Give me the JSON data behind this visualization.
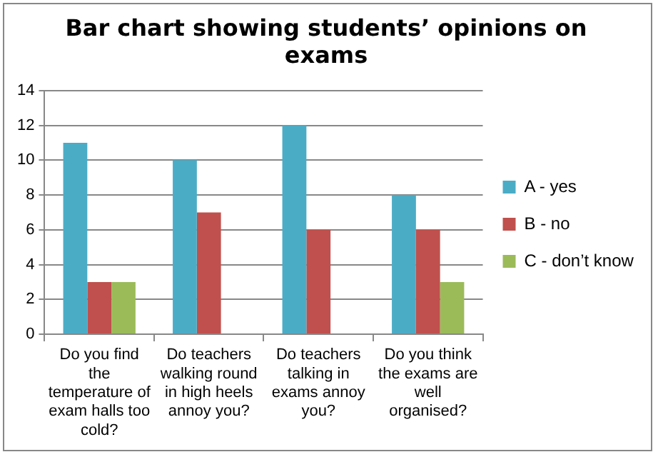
{
  "chart_data": {
    "type": "bar",
    "title": "Bar chart showing students’ opinions on exams",
    "categories": [
      "Do you find the temperature of exam halls too cold?",
      "Do teachers walking round in high heels annoy you?",
      "Do teachers talking in exams annoy you?",
      "Do you think the exams are well organised?"
    ],
    "series": [
      {
        "name": "A - yes",
        "color": "#4bacc6",
        "values": [
          11,
          10,
          12,
          8
        ]
      },
      {
        "name": "B - no",
        "color": "#c0504d",
        "values": [
          3,
          7,
          6,
          6
        ]
      },
      {
        "name": "C - don’t know",
        "color": "#9bbb59",
        "values": [
          3,
          null,
          null,
          3
        ]
      }
    ],
    "ylim": [
      0,
      14
    ],
    "yticks": [
      0,
      2,
      4,
      6,
      8,
      10,
      12,
      14
    ],
    "grid": "y",
    "legend": "right"
  }
}
